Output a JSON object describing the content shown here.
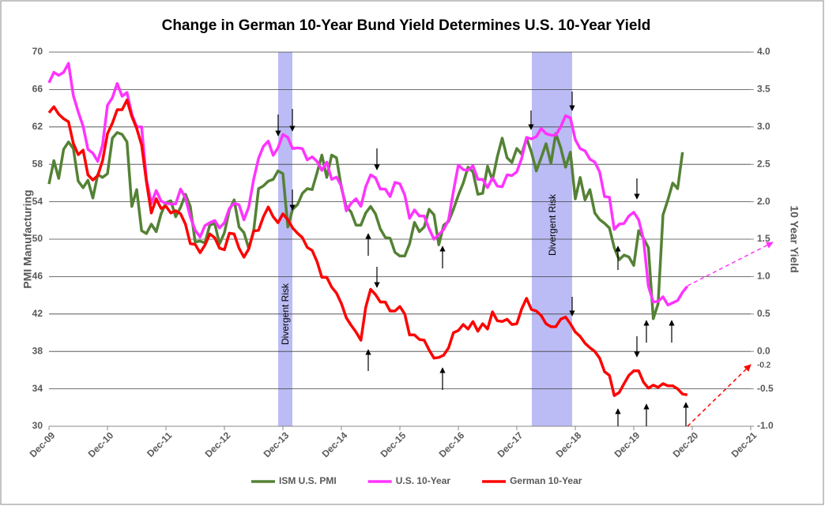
{
  "chart_data": {
    "type": "line",
    "title": "Change in German 10-Year Bund Yield Determines U.S. 10-Year Yield",
    "y_label": "PMI Manufacturing",
    "y2_label": "10 Year Yield",
    "categories": [
      "Dec-09",
      null,
      null,
      null,
      null,
      null,
      null,
      null,
      null,
      null,
      null,
      null,
      "Dec-10",
      null,
      null,
      null,
      null,
      null,
      null,
      null,
      null,
      null,
      null,
      null,
      "Dec-11",
      null,
      null,
      null,
      null,
      null,
      null,
      null,
      null,
      null,
      null,
      null,
      "Dec-12",
      null,
      null,
      null,
      null,
      null,
      null,
      null,
      null,
      null,
      null,
      null,
      "Dec-13",
      null,
      null,
      null,
      null,
      null,
      null,
      null,
      null,
      null,
      null,
      null,
      "Dec-14",
      null,
      null,
      null,
      null,
      null,
      null,
      null,
      null,
      null,
      null,
      null,
      "Dec-15",
      null,
      null,
      null,
      null,
      null,
      null,
      null,
      null,
      null,
      null,
      null,
      "Dec-16",
      null,
      null,
      null,
      null,
      null,
      null,
      null,
      null,
      null,
      null,
      null,
      "Dec-17",
      null,
      null,
      null,
      null,
      null,
      null,
      null,
      null,
      null,
      null,
      null,
      "Dec-18",
      null,
      null,
      null,
      null,
      null,
      null,
      null,
      null,
      null,
      null,
      null,
      "Dec-19",
      null,
      null,
      null,
      null,
      null,
      null,
      null,
      null,
      null,
      null,
      null,
      "Dec-20",
      null,
      null,
      null,
      null,
      null,
      null,
      null,
      null,
      null,
      null,
      null,
      "Dec-21"
    ],
    "series": [
      {
        "name": "ISM U.S. PMI",
        "color": "#548235",
        "axis": "y",
        "values": [
          55.9,
          58.4,
          56.5,
          59.6,
          60.4,
          59.7,
          56.2,
          55.5,
          56.3,
          54.4,
          56.9,
          56.6,
          57.0,
          60.8,
          61.4,
          61.2,
          60.4,
          53.5,
          55.3,
          50.9,
          50.6,
          51.6,
          50.8,
          52.7,
          53.9,
          54.1,
          52.4,
          53.4,
          54.8,
          53.5,
          49.7,
          49.8,
          49.6,
          51.5,
          51.7,
          49.5,
          50.7,
          53.1,
          54.2,
          51.3,
          50.7,
          49.0,
          50.9,
          55.4,
          55.7,
          56.2,
          56.4,
          57.3,
          57.0,
          51.3,
          53.2,
          53.7,
          54.9,
          55.4,
          55.3,
          57.1,
          59.0,
          56.6,
          59.0,
          58.7,
          55.5,
          53.5,
          52.9,
          51.5,
          51.5,
          52.8,
          53.5,
          52.7,
          51.1,
          50.2,
          50.1,
          48.6,
          48.2,
          48.2,
          49.5,
          51.8,
          50.8,
          51.3,
          53.2,
          52.6,
          49.4,
          51.5,
          51.9,
          53.2,
          54.7,
          56.0,
          57.7,
          57.2,
          54.8,
          54.9,
          57.8,
          56.3,
          58.8,
          60.8,
          58.7,
          58.2,
          59.7,
          59.1,
          60.8,
          59.3,
          57.3,
          58.7,
          60.2,
          58.1,
          61.3,
          59.8,
          57.7,
          59.3,
          54.3,
          56.6,
          54.2,
          55.3,
          52.8,
          52.1,
          51.7,
          51.2,
          49.1,
          47.8,
          48.3,
          48.1,
          47.2,
          50.9,
          50.1,
          49.1,
          41.5,
          43.1,
          52.6,
          54.2,
          56.0,
          55.4,
          59.3,
          null,
          null,
          null,
          null,
          null,
          null,
          null,
          null,
          null,
          null,
          null,
          null,
          null,
          null
        ]
      },
      {
        "name": "U.S. 10-Year",
        "color": "#ff33ff",
        "axis": "y2",
        "values": [
          3.59,
          3.73,
          3.69,
          3.73,
          3.85,
          3.42,
          3.2,
          3.01,
          2.7,
          2.65,
          2.54,
          2.76,
          3.29,
          3.39,
          3.58,
          3.41,
          3.46,
          3.17,
          3.0,
          3.0,
          2.3,
          1.98,
          2.15,
          2.01,
          1.98,
          1.97,
          1.97,
          2.17,
          2.05,
          1.8,
          1.62,
          1.53,
          1.68,
          1.72,
          1.75,
          1.65,
          1.72,
          1.91,
          1.98,
          1.96,
          1.76,
          1.93,
          2.3,
          2.58,
          2.74,
          2.81,
          2.62,
          2.72,
          2.9,
          2.86,
          2.71,
          2.72,
          2.71,
          2.56,
          2.6,
          2.54,
          2.42,
          2.53,
          2.3,
          2.33,
          2.21,
          1.88,
          1.98,
          2.04,
          1.94,
          2.2,
          2.36,
          2.32,
          2.17,
          2.17,
          2.07,
          2.26,
          2.24,
          2.09,
          1.78,
          1.89,
          1.81,
          1.81,
          1.64,
          1.5,
          1.56,
          1.63,
          1.76,
          2.14,
          2.49,
          2.43,
          2.42,
          2.48,
          2.3,
          2.3,
          2.19,
          2.32,
          2.21,
          2.2,
          2.36,
          2.35,
          2.4,
          2.58,
          2.86,
          2.84,
          2.87,
          2.98,
          2.91,
          2.89,
          2.89,
          3.0,
          3.15,
          3.12,
          2.83,
          2.71,
          2.68,
          2.57,
          2.53,
          2.4,
          2.07,
          2.06,
          1.63,
          1.7,
          1.71,
          1.81,
          1.86,
          1.76,
          1.5,
          0.87,
          0.66,
          0.67,
          0.73,
          0.62,
          0.65,
          0.68,
          0.79,
          0.87,
          null,
          null,
          null,
          null,
          null,
          null,
          null,
          null,
          null,
          null,
          null,
          null,
          null
        ]
      },
      {
        "name": "German 10-Year",
        "color": "#ff0000",
        "axis": "y2",
        "values": [
          3.19,
          3.27,
          3.17,
          3.11,
          3.07,
          2.78,
          2.63,
          2.69,
          2.36,
          2.29,
          2.35,
          2.55,
          2.91,
          3.05,
          3.23,
          3.23,
          3.36,
          3.14,
          2.98,
          2.76,
          2.27,
          1.85,
          2.04,
          1.91,
          1.94,
          1.85,
          1.88,
          1.84,
          1.7,
          1.44,
          1.43,
          1.32,
          1.42,
          1.57,
          1.52,
          1.38,
          1.36,
          1.58,
          1.57,
          1.38,
          1.26,
          1.37,
          1.61,
          1.62,
          1.8,
          1.93,
          1.8,
          1.72,
          1.84,
          1.76,
          1.65,
          1.58,
          1.52,
          1.39,
          1.35,
          1.2,
          0.99,
          0.99,
          0.86,
          0.78,
          0.64,
          0.45,
          0.35,
          0.26,
          0.15,
          0.59,
          0.83,
          0.76,
          0.66,
          0.66,
          0.54,
          0.54,
          0.6,
          0.5,
          0.22,
          0.22,
          0.16,
          0.15,
          0.02,
          -0.09,
          -0.08,
          -0.05,
          0.05,
          0.25,
          0.28,
          0.36,
          0.3,
          0.4,
          0.27,
          0.37,
          0.3,
          0.53,
          0.41,
          0.4,
          0.43,
          0.36,
          0.37,
          0.57,
          0.71,
          0.56,
          0.54,
          0.48,
          0.37,
          0.33,
          0.33,
          0.43,
          0.46,
          0.37,
          0.26,
          0.2,
          0.11,
          0.05,
          0.0,
          -0.09,
          -0.27,
          -0.32,
          -0.59,
          -0.55,
          -0.43,
          -0.32,
          -0.26,
          -0.26,
          -0.41,
          -0.49,
          -0.45,
          -0.48,
          -0.43,
          -0.46,
          -0.46,
          -0.5,
          -0.57,
          -0.58,
          null,
          null,
          null,
          null,
          null,
          null,
          null,
          null,
          null,
          null,
          null,
          null,
          null
        ]
      }
    ],
    "ylim": [
      30,
      70
    ],
    "yticks": [
      30,
      34,
      38,
      42,
      46,
      50,
      54,
      58,
      62,
      66,
      70
    ],
    "y2lim": [
      -1,
      4
    ],
    "y2ticks": [
      {
        "value": -1,
        "label": "-1.0"
      },
      -0.5,
      {
        "value": 0,
        "label": "0.0"
      },
      0.5,
      {
        "value": 1,
        "label": "1.0"
      },
      1.5,
      {
        "value": 2,
        "label": "2.0"
      },
      2.5,
      {
        "value": 3,
        "label": "3.0"
      },
      3.5,
      {
        "value": 4,
        "label": "4.0"
      }
    ],
    "grid": true,
    "legend": "bottom",
    "annotations": [
      "Divergent Risk",
      "Divergent Risk",
      "-0.2"
    ]
  }
}
